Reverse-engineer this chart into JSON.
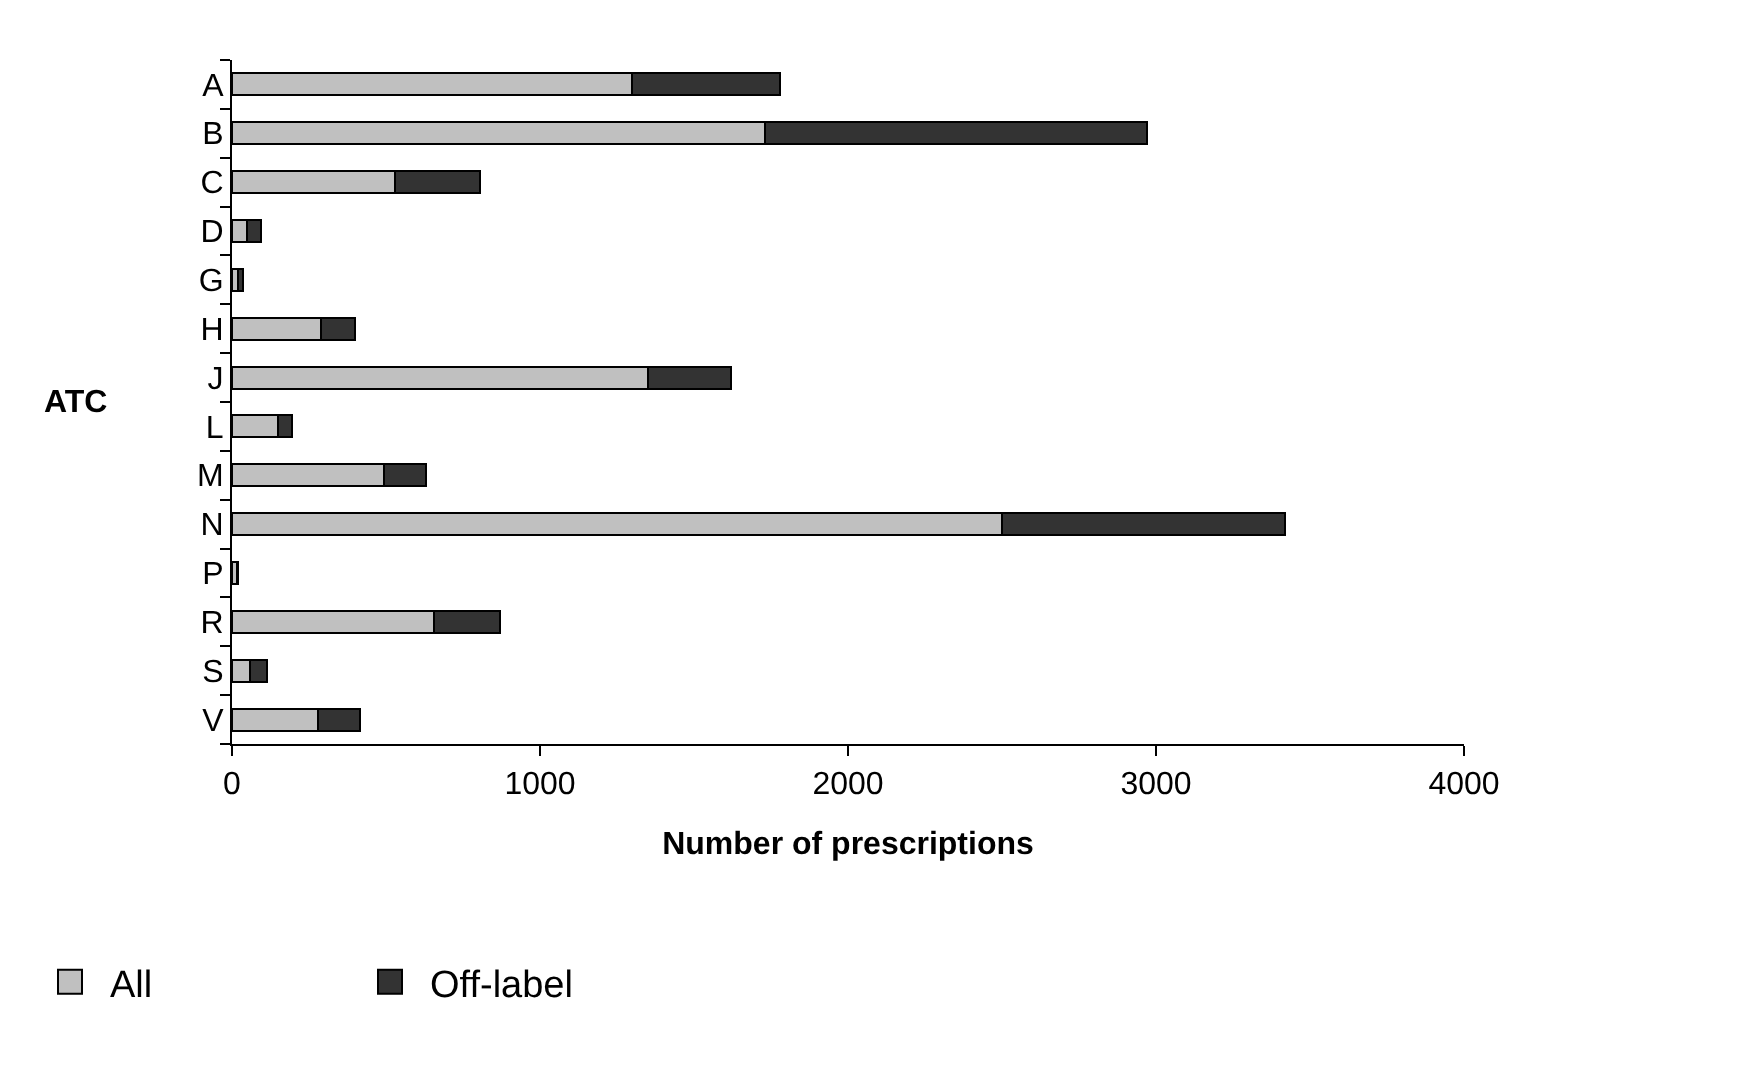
{
  "chart_data": {
    "type": "bar",
    "orientation": "horizontal",
    "stacked": true,
    "categories": [
      "A",
      "B",
      "C",
      "D",
      "G",
      "H",
      "J",
      "L",
      "M",
      "N",
      "P",
      "R",
      "S",
      "V"
    ],
    "series": [
      {
        "name": "All",
        "color": "#c0c0c0",
        "values": [
          1300,
          1730,
          530,
          50,
          20,
          290,
          1350,
          150,
          495,
          2500,
          15,
          655,
          60,
          280
        ]
      },
      {
        "name": "Off-label",
        "color": "#333333",
        "values": [
          480,
          1240,
          275,
          45,
          15,
          110,
          270,
          45,
          135,
          920,
          5,
          215,
          55,
          135
        ]
      }
    ],
    "xlim": [
      0,
      4000
    ],
    "xticks": [
      0,
      1000,
      2000,
      3000,
      4000
    ],
    "xlabel": "Number of prescriptions",
    "ylabel": "ATC",
    "legend": "bottom left"
  }
}
